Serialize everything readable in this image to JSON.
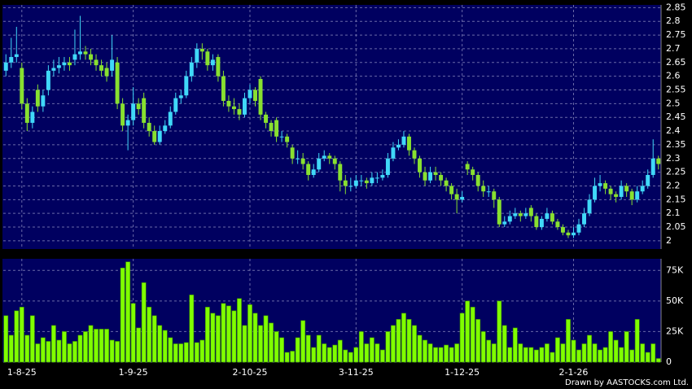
{
  "chart_data": [
    {
      "type": "candlestick",
      "categories": [
        null,
        null,
        null,
        "1-8-25",
        null,
        null,
        null,
        null,
        null,
        null,
        null,
        null,
        null,
        null,
        null,
        null,
        null,
        null,
        null,
        null,
        null,
        null,
        null,
        null,
        "1-9-25",
        null,
        null,
        null,
        null,
        null,
        null,
        null,
        null,
        null,
        null,
        null,
        null,
        null,
        null,
        null,
        null,
        null,
        null,
        null,
        null,
        null,
        "2-10-25",
        null,
        null,
        null,
        null,
        null,
        null,
        null,
        null,
        null,
        null,
        null,
        null,
        null,
        null,
        null,
        null,
        null,
        null,
        null,
        "3-11-25",
        null,
        null,
        null,
        null,
        null,
        null,
        null,
        null,
        null,
        null,
        null,
        null,
        null,
        null,
        null,
        null,
        null,
        null,
        null,
        "1-12-25",
        null,
        null,
        null,
        null,
        null,
        null,
        null,
        null,
        null,
        null,
        null,
        null,
        null,
        null,
        null,
        null,
        null,
        null,
        null,
        null,
        "2-1-26",
        null,
        null,
        null,
        null,
        null,
        null,
        null,
        null,
        null,
        null,
        null,
        null,
        null,
        null,
        null,
        null
      ],
      "ohlc": [
        [
          2.62,
          2.68,
          2.6,
          2.65
        ],
        [
          2.65,
          2.74,
          2.63,
          2.67
        ],
        [
          2.67,
          2.78,
          2.65,
          2.68
        ],
        [
          2.63,
          2.65,
          2.48,
          2.5
        ],
        [
          2.5,
          2.52,
          2.4,
          2.43
        ],
        [
          2.43,
          2.49,
          2.41,
          2.47
        ],
        [
          2.55,
          2.57,
          2.47,
          2.49
        ],
        [
          2.49,
          2.55,
          2.47,
          2.53
        ],
        [
          2.55,
          2.64,
          2.53,
          2.62
        ],
        [
          2.62,
          2.66,
          2.6,
          2.63
        ],
        [
          2.63,
          2.67,
          2.61,
          2.64
        ],
        [
          2.64,
          2.67,
          2.62,
          2.65
        ],
        [
          2.65,
          2.67,
          2.62,
          2.64
        ],
        [
          2.66,
          2.77,
          2.64,
          2.68
        ],
        [
          2.68,
          2.82,
          2.66,
          2.69
        ],
        [
          2.69,
          2.71,
          2.66,
          2.68
        ],
        [
          2.68,
          2.7,
          2.64,
          2.66
        ],
        [
          2.66,
          2.68,
          2.62,
          2.64
        ],
        [
          2.64,
          2.66,
          2.6,
          2.62
        ],
        [
          2.63,
          2.65,
          2.58,
          2.6
        ],
        [
          2.62,
          2.75,
          2.6,
          2.66
        ],
        [
          2.65,
          2.67,
          2.48,
          2.5
        ],
        [
          2.5,
          2.52,
          2.4,
          2.42
        ],
        [
          2.42,
          2.46,
          2.33,
          2.44
        ],
        [
          2.44,
          2.56,
          2.42,
          2.5
        ],
        [
          2.5,
          2.52,
          2.46,
          2.48
        ],
        [
          2.52,
          2.54,
          2.41,
          2.43
        ],
        [
          2.43,
          2.45,
          2.38,
          2.4
        ],
        [
          2.4,
          2.42,
          2.35,
          2.36
        ],
        [
          2.36,
          2.42,
          2.35,
          2.4
        ],
        [
          2.4,
          2.44,
          2.39,
          2.42
        ],
        [
          2.42,
          2.49,
          2.41,
          2.47
        ],
        [
          2.47,
          2.54,
          2.46,
          2.52
        ],
        [
          2.52,
          2.55,
          2.5,
          2.53
        ],
        [
          2.53,
          2.62,
          2.52,
          2.6
        ],
        [
          2.6,
          2.67,
          2.58,
          2.65
        ],
        [
          2.65,
          2.72,
          2.63,
          2.7
        ],
        [
          2.7,
          2.72,
          2.66,
          2.69
        ],
        [
          2.69,
          2.7,
          2.62,
          2.64
        ],
        [
          2.64,
          2.68,
          2.62,
          2.66
        ],
        [
          2.67,
          2.68,
          2.58,
          2.6
        ],
        [
          2.6,
          2.62,
          2.49,
          2.51
        ],
        [
          2.51,
          2.53,
          2.47,
          2.49
        ],
        [
          2.49,
          2.52,
          2.46,
          2.48
        ],
        [
          2.48,
          2.5,
          2.44,
          2.46
        ],
        [
          2.46,
          2.54,
          2.45,
          2.52
        ],
        [
          2.52,
          2.57,
          2.5,
          2.55
        ],
        [
          2.55,
          2.56,
          2.49,
          2.51
        ],
        [
          2.59,
          2.6,
          2.44,
          2.46
        ],
        [
          2.46,
          2.47,
          2.41,
          2.43
        ],
        [
          2.43,
          2.44,
          2.38,
          2.4
        ],
        [
          2.44,
          2.45,
          2.36,
          2.38
        ],
        [
          2.38,
          2.4,
          2.36,
          2.38
        ],
        [
          2.38,
          2.39,
          2.34,
          2.36
        ],
        [
          2.34,
          2.35,
          2.28,
          2.3
        ],
        [
          2.3,
          2.33,
          2.28,
          2.3
        ],
        [
          2.3,
          2.32,
          2.26,
          2.28
        ],
        [
          2.28,
          2.29,
          2.22,
          2.24
        ],
        [
          2.24,
          2.28,
          2.23,
          2.26
        ],
        [
          2.26,
          2.32,
          2.25,
          2.3
        ],
        [
          2.3,
          2.33,
          2.29,
          2.31
        ],
        [
          2.31,
          2.32,
          2.28,
          2.3
        ],
        [
          2.3,
          2.31,
          2.26,
          2.28
        ],
        [
          2.28,
          2.29,
          2.18,
          2.22
        ],
        [
          2.22,
          2.24,
          2.17,
          2.2
        ],
        [
          2.2,
          2.23,
          2.18,
          2.2
        ],
        [
          2.2,
          2.24,
          2.19,
          2.22
        ],
        [
          2.22,
          2.24,
          2.2,
          2.22
        ],
        [
          2.22,
          2.23,
          2.19,
          2.21
        ],
        [
          2.21,
          2.25,
          2.2,
          2.23
        ],
        [
          2.23,
          2.25,
          2.21,
          2.23
        ],
        [
          2.23,
          2.26,
          2.22,
          2.24
        ],
        [
          2.24,
          2.32,
          2.23,
          2.3
        ],
        [
          2.3,
          2.36,
          2.29,
          2.34
        ],
        [
          2.34,
          2.37,
          2.33,
          2.35
        ],
        [
          2.35,
          2.4,
          2.34,
          2.38
        ],
        [
          2.38,
          2.39,
          2.31,
          2.33
        ],
        [
          2.33,
          2.34,
          2.28,
          2.3
        ],
        [
          2.3,
          2.31,
          2.23,
          2.25
        ],
        [
          2.25,
          2.27,
          2.2,
          2.22
        ],
        [
          2.22,
          2.27,
          2.21,
          2.25
        ],
        [
          2.25,
          2.27,
          2.22,
          2.24
        ],
        [
          2.24,
          2.25,
          2.2,
          2.22
        ],
        [
          2.22,
          2.23,
          2.18,
          2.2
        ],
        [
          2.2,
          2.21,
          2.15,
          2.17
        ],
        [
          2.17,
          2.19,
          2.1,
          2.15
        ],
        [
          2.15,
          2.18,
          2.14,
          2.16
        ],
        [
          2.28,
          2.29,
          2.24,
          2.26
        ],
        [
          2.26,
          2.27,
          2.22,
          2.24
        ],
        [
          2.24,
          2.25,
          2.18,
          2.2
        ],
        [
          2.2,
          2.22,
          2.16,
          2.18
        ],
        [
          2.18,
          2.2,
          2.16,
          2.18
        ],
        [
          2.18,
          2.19,
          2.12,
          2.15
        ],
        [
          2.15,
          2.16,
          2.05,
          2.06
        ],
        [
          2.06,
          2.09,
          2.05,
          2.07
        ],
        [
          2.07,
          2.11,
          2.06,
          2.09
        ],
        [
          2.09,
          2.12,
          2.08,
          2.1
        ],
        [
          2.1,
          2.11,
          2.07,
          2.09
        ],
        [
          2.09,
          2.12,
          2.08,
          2.1
        ],
        [
          2.12,
          2.13,
          2.07,
          2.09
        ],
        [
          2.09,
          2.1,
          2.04,
          2.05
        ],
        [
          2.05,
          2.09,
          2.04,
          2.08
        ],
        [
          2.08,
          2.12,
          2.07,
          2.1
        ],
        [
          2.1,
          2.11,
          2.06,
          2.07
        ],
        [
          2.07,
          2.08,
          2.04,
          2.05
        ],
        [
          2.05,
          2.06,
          2.02,
          2.03
        ],
        [
          2.03,
          2.04,
          2.01,
          2.02
        ],
        [
          2.02,
          2.05,
          2.01,
          2.03
        ],
        [
          2.03,
          2.08,
          2.02,
          2.06
        ],
        [
          2.06,
          2.12,
          2.05,
          2.1
        ],
        [
          2.1,
          2.17,
          2.09,
          2.15
        ],
        [
          2.15,
          2.23,
          2.14,
          2.2
        ],
        [
          2.2,
          2.24,
          2.18,
          2.21
        ],
        [
          2.21,
          2.22,
          2.17,
          2.19
        ],
        [
          2.19,
          2.2,
          2.15,
          2.17
        ],
        [
          2.17,
          2.18,
          2.14,
          2.16
        ],
        [
          2.16,
          2.22,
          2.15,
          2.2
        ],
        [
          2.2,
          2.21,
          2.16,
          2.18
        ],
        [
          2.18,
          2.19,
          2.13,
          2.15
        ],
        [
          2.15,
          2.2,
          2.14,
          2.18
        ],
        [
          2.18,
          2.22,
          2.17,
          2.2
        ],
        [
          2.2,
          2.26,
          2.19,
          2.24
        ],
        [
          2.24,
          2.37,
          2.23,
          2.3
        ],
        [
          2.3,
          2.31,
          2.26,
          2.28
        ]
      ],
      "up_color": "#40d8f8",
      "down_color": "#88e030",
      "ylim": [
        1.97,
        2.86
      ],
      "yticks": [
        2,
        2.05,
        2.1,
        2.15,
        2.2,
        2.25,
        2.3,
        2.35,
        2.4,
        2.45,
        2.5,
        2.55,
        2.6,
        2.65,
        2.7,
        2.75,
        2.8,
        2.85
      ],
      "grid": true
    },
    {
      "type": "bar",
      "values": [
        38000,
        22000,
        42000,
        45000,
        22000,
        38000,
        15000,
        20000,
        17000,
        30000,
        18000,
        25000,
        15000,
        17000,
        22000,
        25000,
        30000,
        27000,
        27000,
        27000,
        18000,
        17000,
        77000,
        82000,
        48000,
        28000,
        65000,
        45000,
        38000,
        30000,
        26000,
        20000,
        15000,
        15000,
        16000,
        55000,
        16000,
        18000,
        45000,
        40000,
        38000,
        48000,
        46000,
        42000,
        52000,
        30000,
        47000,
        40000,
        30000,
        38000,
        32000,
        25000,
        20000,
        8000,
        9000,
        20000,
        34000,
        22000,
        12000,
        22000,
        15000,
        12000,
        14000,
        18000,
        10000,
        8000,
        12000,
        25000,
        15000,
        20000,
        15000,
        10000,
        25000,
        30000,
        35000,
        40000,
        35000,
        30000,
        22000,
        18000,
        15000,
        12000,
        12000,
        14000,
        12000,
        15000,
        40000,
        50000,
        45000,
        35000,
        25000,
        18000,
        15000,
        50000,
        30000,
        12000,
        28000,
        15000,
        12000,
        12000,
        10000,
        12000,
        15000,
        8000,
        20000,
        15000,
        35000,
        18000,
        10000,
        15000,
        22000,
        15000,
        10000,
        12000,
        25000,
        18000,
        12000,
        25000,
        10000,
        35000,
        15000,
        8000,
        15000,
        3000
      ],
      "color": "#80ff00",
      "ylim": [
        0,
        84500
      ],
      "yticks": [
        0,
        {
          "value": 25000,
          "label": "25K"
        },
        {
          "value": 50000,
          "label": "50K"
        },
        {
          "value": 75000,
          "label": "75K"
        }
      ],
      "grid": true
    }
  ],
  "footer": "Drawn by AASTOCKS.com Ltd."
}
